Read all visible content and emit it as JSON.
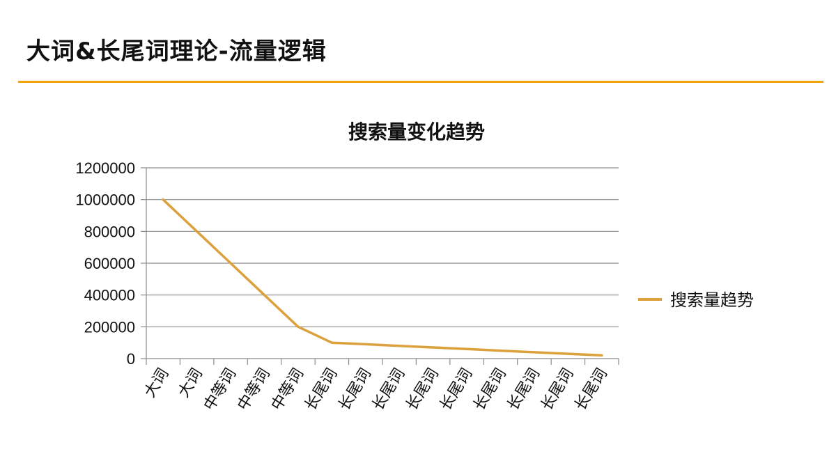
{
  "slide": {
    "title": "大词&长尾词理论-流量逻辑"
  },
  "colors": {
    "accent": "#f0a30a",
    "series": "#dca13c",
    "grid": "#8c8c8c"
  },
  "chart_data": {
    "type": "line",
    "title": "搜索量变化趋势",
    "categories": [
      "大词",
      "大词",
      "中等词",
      "中等词",
      "中等词",
      "长尾词",
      "长尾词",
      "长尾词",
      "长尾词",
      "长尾词",
      "长尾词",
      "长尾词",
      "长尾词",
      "长尾词"
    ],
    "series": [
      {
        "name": "搜索量趋势",
        "values": [
          1000000,
          800000,
          600000,
          400000,
          200000,
          100000,
          90000,
          80000,
          70000,
          60000,
          50000,
          40000,
          30000,
          20000
        ]
      }
    ],
    "ylim": [
      0,
      1200000
    ],
    "yticks": [
      "0",
      "200000",
      "400000",
      "600000",
      "800000",
      "1000000",
      "1200000"
    ],
    "grid": true,
    "legend_position": "right"
  }
}
